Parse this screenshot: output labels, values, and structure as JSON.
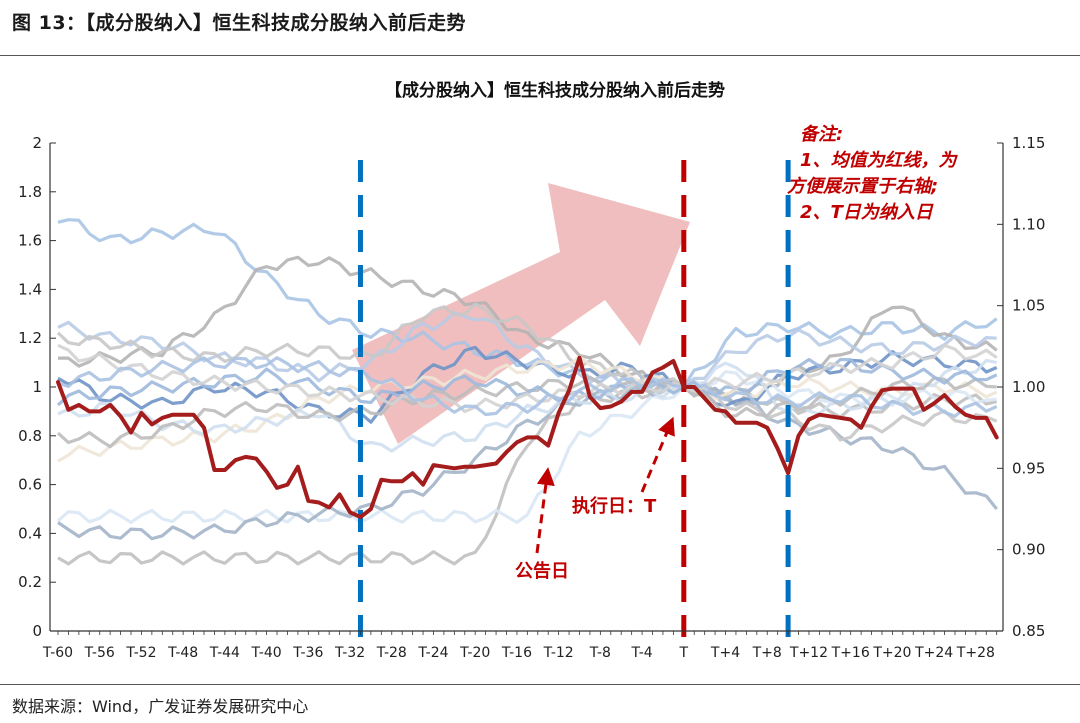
{
  "figure_title": "图 13：【成分股纳入】恒生科技成分股纳入前后走势",
  "source": "数据来源：Wind，广发证券发展研究中心",
  "colors": {
    "mean_line": "#a51c1c",
    "blue_dashed": "#0070c0",
    "red_dashed": "#c00000",
    "arrow_fill": "#e9a3a3",
    "annotation": "#c00000"
  },
  "chart_data": {
    "type": "line",
    "title": "【成分股纳入】恒生科技成分股纳入前后走势",
    "x_range": [
      "T-60",
      "T+30"
    ],
    "x_tick_labels": [
      "T-60",
      "T-56",
      "T-52",
      "T-48",
      "T-44",
      "T-40",
      "T-36",
      "T-32",
      "T-28",
      "T-24",
      "T-20",
      "T-16",
      "T-12",
      "T-8",
      "T-4",
      "T",
      "T+4",
      "T+8",
      "T+12",
      "T+16",
      "T+20",
      "T+24",
      "T+28"
    ],
    "left_axis": {
      "min": 0,
      "max": 2,
      "ticks": [
        "0",
        "0.2",
        "0.4",
        "0.6",
        "0.8",
        "1",
        "1.2",
        "1.4",
        "1.6",
        "1.8",
        "2"
      ]
    },
    "right_axis": {
      "min": 0.85,
      "max": 1.15,
      "ticks": [
        "0.85",
        "0.90",
        "0.95",
        "1.00",
        "1.05",
        "1.10",
        "1.15"
      ]
    },
    "grid": false,
    "mean_series": {
      "axis": "right",
      "x_start": "T-60",
      "values": [
        1.003,
        0.986,
        0.989,
        0.985,
        0.985,
        0.989,
        0.982,
        0.972,
        0.984,
        0.977,
        0.981,
        0.983,
        0.983,
        0.983,
        0.975,
        0.949,
        0.949,
        0.955,
        0.957,
        0.956,
        0.948,
        0.938,
        0.94,
        0.951,
        0.93,
        0.929,
        0.926,
        0.934,
        0.923,
        0.92,
        0.925,
        0.943,
        0.942,
        0.942,
        0.947,
        0.94,
        0.952,
        0.951,
        0.95,
        0.951,
        0.951,
        0.952,
        0.953,
        0.96,
        0.966,
        0.969,
        0.969,
        0.964,
        0.984,
        0.998,
        1.018,
        0.994,
        0.987,
        0.988,
        0.991,
        0.997,
        0.997,
        1.009,
        1.012,
        1.016,
        1.0,
        1.0,
        0.993,
        0.986,
        0.985,
        0.978,
        0.978,
        0.978,
        0.975,
        0.962,
        0.947,
        0.97,
        0.98,
        0.983,
        0.982,
        0.981,
        0.98,
        0.975,
        0.988,
        0.998,
        0.999,
        0.999,
        0.999,
        0.986,
        0.99,
        0.995,
        0.988,
        0.983,
        0.981,
        0.981,
        0.969
      ]
    },
    "constituent_series_axis": "left",
    "constituent_sample_x": [
      "T-60",
      "T-55",
      "T-50",
      "T-45",
      "T-40",
      "T-35",
      "T-30",
      "T-25",
      "T-20",
      "T-15",
      "T-10",
      "T-5",
      "T",
      "T+5",
      "T+10",
      "T+15",
      "T+20",
      "T+25",
      "T+30"
    ],
    "constituent_series": [
      {
        "color": "#a9c4e4",
        "values": [
          1.7,
          1.6,
          1.63,
          1.65,
          1.45,
          1.3,
          1.22,
          1.2,
          1.15,
          1.1,
          1.05,
          1.03,
          1.0,
          1.22,
          1.25,
          1.22,
          1.25,
          1.22,
          1.28
        ]
      },
      {
        "color": "#b4b4b4",
        "values": [
          1.1,
          1.12,
          1.15,
          1.28,
          1.5,
          1.52,
          1.46,
          1.4,
          1.35,
          1.2,
          1.15,
          1.05,
          1.0,
          0.95,
          1.05,
          1.12,
          1.35,
          1.2,
          1.15
        ]
      },
      {
        "color": "#c0c0c0",
        "values": [
          0.3,
          0.3,
          0.3,
          0.3,
          0.3,
          0.3,
          0.3,
          0.3,
          0.3,
          0.78,
          0.95,
          0.97,
          1.0,
          0.98,
          0.92,
          0.9,
          0.92,
          0.95,
          0.94
        ]
      },
      {
        "color": "#dae7f5",
        "values": [
          0.47,
          0.47,
          0.47,
          0.47,
          0.47,
          0.47,
          0.47,
          0.47,
          0.47,
          0.47,
          0.8,
          0.9,
          1.0,
          1.05,
          0.98,
          0.95,
          0.96,
          0.97,
          0.95
        ]
      },
      {
        "color": "#a3b4c8",
        "values": [
          0.42,
          0.4,
          0.4,
          0.41,
          0.45,
          0.48,
          0.5,
          0.58,
          0.7,
          0.85,
          0.95,
          0.98,
          1.0,
          0.95,
          0.85,
          0.8,
          0.75,
          0.65,
          0.5
        ]
      },
      {
        "color": "#6f93c6",
        "values": [
          1.05,
          0.95,
          0.93,
          1.0,
          0.98,
          0.9,
          0.88,
          1.05,
          1.15,
          1.1,
          1.05,
          1.08,
          1.0,
          0.92,
          1.05,
          1.08,
          1.12,
          1.1,
          1.08
        ]
      },
      {
        "color": "#b8cbe6",
        "values": [
          1.25,
          1.2,
          1.18,
          1.12,
          1.1,
          1.05,
          1.1,
          1.25,
          1.3,
          1.15,
          1.05,
          1.02,
          1.0,
          1.15,
          1.22,
          1.18,
          1.15,
          1.18,
          1.2
        ]
      },
      {
        "color": "#c8c8c8",
        "values": [
          1.2,
          1.18,
          1.14,
          1.12,
          1.15,
          1.15,
          1.12,
          1.3,
          1.32,
          1.25,
          1.1,
          1.05,
          1.0,
          0.92,
          0.88,
          0.8,
          0.85,
          0.88,
          0.86
        ]
      },
      {
        "color": "#eee6d6",
        "values": [
          0.72,
          0.75,
          0.78,
          0.8,
          0.85,
          0.95,
          1.0,
          1.02,
          1.05,
          1.08,
          1.1,
          1.05,
          1.0,
          0.96,
          1.02,
          1.0,
          0.98,
          1.0,
          0.98
        ]
      },
      {
        "color": "#cfdff0",
        "values": [
          0.88,
          0.92,
          0.85,
          0.82,
          0.86,
          0.9,
          0.75,
          0.78,
          0.8,
          0.9,
          0.95,
          0.96,
          1.0,
          1.1,
          0.9,
          0.92,
          0.95,
          1.05,
          1.1
        ]
      },
      {
        "color": "#bcbcbc",
        "values": [
          0.8,
          0.78,
          0.82,
          0.9,
          0.92,
          0.88,
          0.9,
          0.96,
          0.98,
          1.0,
          1.02,
          1.0,
          1.0,
          0.88,
          0.92,
          0.95,
          1.0,
          1.02,
          1.0
        ]
      },
      {
        "color": "#9fb9dd",
        "values": [
          0.95,
          0.98,
          1.0,
          1.02,
          1.05,
          1.0,
          0.95,
          1.0,
          1.03,
          0.98,
          0.96,
          1.0,
          1.0,
          0.98,
          1.08,
          1.1,
          1.06,
          1.04,
          1.05
        ]
      },
      {
        "color": "#d3d3d3",
        "values": [
          1.15,
          1.1,
          1.05,
          1.02,
          1.0,
          0.98,
          0.96,
          0.94,
          0.92,
          0.95,
          0.98,
          1.0,
          1.0,
          1.02,
          1.05,
          1.08,
          1.1,
          1.15,
          1.12
        ]
      },
      {
        "color": "#aac2e2",
        "values": [
          1.02,
          1.05,
          1.08,
          1.1,
          1.1,
          1.08,
          1.05,
          0.95,
          0.9,
          0.92,
          0.98,
          1.02,
          1.0,
          0.96,
          0.94,
          0.96,
          0.92,
          0.9,
          0.92
        ]
      }
    ],
    "vertical_markers": [
      {
        "x": "T-31",
        "style": "blue-dashed"
      },
      {
        "x": "T",
        "style": "red-dashed"
      },
      {
        "x": "T+10",
        "style": "blue-dashed"
      }
    ],
    "annotations": {
      "note_lines": [
        "备注:",
        "1、均值为红线，为",
        "方便展示置于右轴;",
        "2、T日为纳入日"
      ],
      "execution_day": "执行日：T",
      "announcement_day": "公告日"
    }
  }
}
